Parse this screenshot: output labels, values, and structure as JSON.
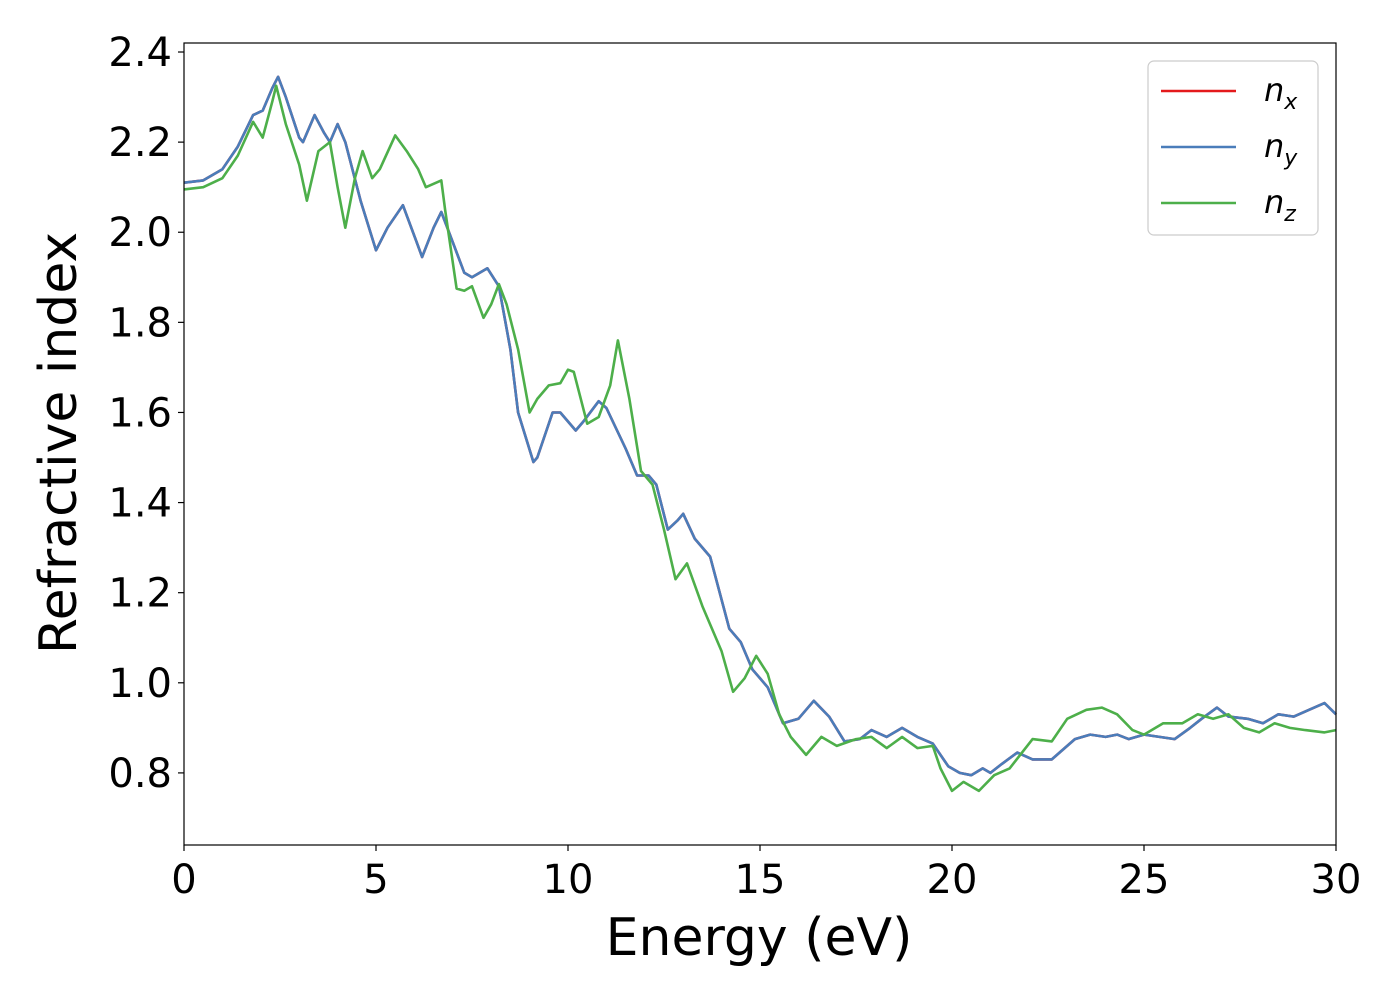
{
  "chart_data": {
    "type": "line",
    "title": "",
    "xlabel": "Energy (eV)",
    "ylabel": "Refractive index",
    "xlim": [
      0,
      30
    ],
    "ylim": [
      0.64,
      2.42
    ],
    "xticks": [
      0,
      5,
      10,
      15,
      20,
      25,
      30
    ],
    "yticks": [
      0.8,
      1.0,
      1.2,
      1.4,
      1.6,
      1.8,
      2.0,
      2.2,
      2.4
    ],
    "xtick_labels": [
      "0",
      "5",
      "10",
      "15",
      "20",
      "25",
      "30"
    ],
    "ytick_labels": [
      "0.8",
      "1.0",
      "1.2",
      "1.4",
      "1.6",
      "1.8",
      "2.0",
      "2.2",
      "2.4"
    ],
    "grid": false,
    "legend_position": "top-right",
    "series": [
      {
        "name": "n_x",
        "legend_base": "n",
        "legend_sub": "x",
        "color": "#e41a1c",
        "points": [
          [
            0,
            2.11
          ],
          [
            0.5,
            2.115
          ],
          [
            1,
            2.14
          ],
          [
            1.4,
            2.19
          ],
          [
            1.8,
            2.26
          ],
          [
            2.05,
            2.27
          ],
          [
            2.3,
            2.32
          ],
          [
            2.45,
            2.345
          ],
          [
            2.65,
            2.3
          ],
          [
            3.0,
            2.21
          ],
          [
            3.1,
            2.2
          ],
          [
            3.4,
            2.26
          ],
          [
            3.65,
            2.22
          ],
          [
            3.8,
            2.2
          ],
          [
            4.0,
            2.24
          ],
          [
            4.2,
            2.2
          ],
          [
            4.6,
            2.07
          ],
          [
            5.0,
            1.96
          ],
          [
            5.3,
            2.01
          ],
          [
            5.7,
            2.06
          ],
          [
            6.05,
            1.98
          ],
          [
            6.2,
            1.945
          ],
          [
            6.5,
            2.01
          ],
          [
            6.7,
            2.045
          ],
          [
            6.9,
            2.0
          ],
          [
            7.3,
            1.91
          ],
          [
            7.5,
            1.9
          ],
          [
            7.9,
            1.92
          ],
          [
            8.2,
            1.88
          ],
          [
            8.5,
            1.74
          ],
          [
            8.7,
            1.6
          ],
          [
            9.1,
            1.49
          ],
          [
            9.2,
            1.5
          ],
          [
            9.6,
            1.6
          ],
          [
            9.8,
            1.6
          ],
          [
            10.2,
            1.56
          ],
          [
            10.4,
            1.58
          ],
          [
            10.8,
            1.625
          ],
          [
            11.0,
            1.61
          ],
          [
            11.5,
            1.52
          ],
          [
            11.8,
            1.46
          ],
          [
            12.1,
            1.46
          ],
          [
            12.3,
            1.44
          ],
          [
            12.6,
            1.34
          ],
          [
            12.85,
            1.36
          ],
          [
            13.0,
            1.375
          ],
          [
            13.3,
            1.32
          ],
          [
            13.7,
            1.28
          ],
          [
            14.2,
            1.12
          ],
          [
            14.5,
            1.09
          ],
          [
            14.8,
            1.03
          ],
          [
            15.2,
            0.99
          ],
          [
            15.6,
            0.91
          ],
          [
            16.0,
            0.92
          ],
          [
            16.4,
            0.96
          ],
          [
            16.8,
            0.925
          ],
          [
            17.2,
            0.87
          ],
          [
            17.6,
            0.875
          ],
          [
            17.9,
            0.895
          ],
          [
            18.3,
            0.88
          ],
          [
            18.7,
            0.9
          ],
          [
            19.1,
            0.88
          ],
          [
            19.5,
            0.865
          ],
          [
            19.9,
            0.815
          ],
          [
            20.2,
            0.8
          ],
          [
            20.5,
            0.795
          ],
          [
            20.8,
            0.81
          ],
          [
            21.0,
            0.8
          ],
          [
            21.3,
            0.82
          ],
          [
            21.7,
            0.845
          ],
          [
            22.1,
            0.83
          ],
          [
            22.6,
            0.83
          ],
          [
            23.2,
            0.875
          ],
          [
            23.6,
            0.885
          ],
          [
            24.0,
            0.88
          ],
          [
            24.3,
            0.885
          ],
          [
            24.6,
            0.875
          ],
          [
            25.0,
            0.885
          ],
          [
            25.4,
            0.88
          ],
          [
            25.8,
            0.875
          ],
          [
            26.2,
            0.9
          ],
          [
            26.5,
            0.92
          ],
          [
            26.9,
            0.945
          ],
          [
            27.2,
            0.925
          ],
          [
            27.7,
            0.92
          ],
          [
            28.1,
            0.91
          ],
          [
            28.5,
            0.93
          ],
          [
            28.9,
            0.925
          ],
          [
            29.3,
            0.94
          ],
          [
            29.7,
            0.955
          ],
          [
            30,
            0.93
          ]
        ]
      },
      {
        "name": "n_y",
        "legend_base": "n",
        "legend_sub": "y",
        "color": "#4a7dba",
        "points": [
          [
            0,
            2.11
          ],
          [
            0.5,
            2.115
          ],
          [
            1,
            2.14
          ],
          [
            1.4,
            2.19
          ],
          [
            1.8,
            2.26
          ],
          [
            2.05,
            2.27
          ],
          [
            2.3,
            2.32
          ],
          [
            2.45,
            2.345
          ],
          [
            2.65,
            2.3
          ],
          [
            3.0,
            2.21
          ],
          [
            3.1,
            2.2
          ],
          [
            3.4,
            2.26
          ],
          [
            3.65,
            2.22
          ],
          [
            3.8,
            2.2
          ],
          [
            4.0,
            2.24
          ],
          [
            4.2,
            2.2
          ],
          [
            4.6,
            2.07
          ],
          [
            5.0,
            1.96
          ],
          [
            5.3,
            2.01
          ],
          [
            5.7,
            2.06
          ],
          [
            6.05,
            1.98
          ],
          [
            6.2,
            1.945
          ],
          [
            6.5,
            2.01
          ],
          [
            6.7,
            2.045
          ],
          [
            6.9,
            2.0
          ],
          [
            7.3,
            1.91
          ],
          [
            7.5,
            1.9
          ],
          [
            7.9,
            1.92
          ],
          [
            8.2,
            1.88
          ],
          [
            8.5,
            1.74
          ],
          [
            8.7,
            1.6
          ],
          [
            9.1,
            1.49
          ],
          [
            9.2,
            1.5
          ],
          [
            9.6,
            1.6
          ],
          [
            9.8,
            1.6
          ],
          [
            10.2,
            1.56
          ],
          [
            10.4,
            1.58
          ],
          [
            10.8,
            1.625
          ],
          [
            11.0,
            1.61
          ],
          [
            11.5,
            1.52
          ],
          [
            11.8,
            1.46
          ],
          [
            12.1,
            1.46
          ],
          [
            12.3,
            1.44
          ],
          [
            12.6,
            1.34
          ],
          [
            12.85,
            1.36
          ],
          [
            13.0,
            1.375
          ],
          [
            13.3,
            1.32
          ],
          [
            13.7,
            1.28
          ],
          [
            14.2,
            1.12
          ],
          [
            14.5,
            1.09
          ],
          [
            14.8,
            1.03
          ],
          [
            15.2,
            0.99
          ],
          [
            15.6,
            0.91
          ],
          [
            16.0,
            0.92
          ],
          [
            16.4,
            0.96
          ],
          [
            16.8,
            0.925
          ],
          [
            17.2,
            0.87
          ],
          [
            17.6,
            0.875
          ],
          [
            17.9,
            0.895
          ],
          [
            18.3,
            0.88
          ],
          [
            18.7,
            0.9
          ],
          [
            19.1,
            0.88
          ],
          [
            19.5,
            0.865
          ],
          [
            19.9,
            0.815
          ],
          [
            20.2,
            0.8
          ],
          [
            20.5,
            0.795
          ],
          [
            20.8,
            0.81
          ],
          [
            21.0,
            0.8
          ],
          [
            21.3,
            0.82
          ],
          [
            21.7,
            0.845
          ],
          [
            22.1,
            0.83
          ],
          [
            22.6,
            0.83
          ],
          [
            23.2,
            0.875
          ],
          [
            23.6,
            0.885
          ],
          [
            24.0,
            0.88
          ],
          [
            24.3,
            0.885
          ],
          [
            24.6,
            0.875
          ],
          [
            25.0,
            0.885
          ],
          [
            25.4,
            0.88
          ],
          [
            25.8,
            0.875
          ],
          [
            26.2,
            0.9
          ],
          [
            26.5,
            0.92
          ],
          [
            26.9,
            0.945
          ],
          [
            27.2,
            0.925
          ],
          [
            27.7,
            0.92
          ],
          [
            28.1,
            0.91
          ],
          [
            28.5,
            0.93
          ],
          [
            28.9,
            0.925
          ],
          [
            29.3,
            0.94
          ],
          [
            29.7,
            0.955
          ],
          [
            30,
            0.93
          ]
        ]
      },
      {
        "name": "n_z",
        "legend_base": "n",
        "legend_sub": "z",
        "color": "#4daf4a",
        "points": [
          [
            0,
            2.095
          ],
          [
            0.5,
            2.1
          ],
          [
            1,
            2.12
          ],
          [
            1.4,
            2.17
          ],
          [
            1.8,
            2.245
          ],
          [
            2.05,
            2.21
          ],
          [
            2.3,
            2.29
          ],
          [
            2.4,
            2.325
          ],
          [
            2.65,
            2.24
          ],
          [
            3.0,
            2.15
          ],
          [
            3.2,
            2.07
          ],
          [
            3.5,
            2.18
          ],
          [
            3.8,
            2.2
          ],
          [
            4.0,
            2.1
          ],
          [
            4.2,
            2.01
          ],
          [
            4.45,
            2.12
          ],
          [
            4.65,
            2.18
          ],
          [
            4.9,
            2.12
          ],
          [
            5.1,
            2.14
          ],
          [
            5.5,
            2.215
          ],
          [
            5.8,
            2.18
          ],
          [
            6.1,
            2.14
          ],
          [
            6.3,
            2.1
          ],
          [
            6.7,
            2.115
          ],
          [
            6.8,
            2.05
          ],
          [
            7.1,
            1.875
          ],
          [
            7.3,
            1.87
          ],
          [
            7.5,
            1.88
          ],
          [
            7.8,
            1.81
          ],
          [
            8.0,
            1.84
          ],
          [
            8.2,
            1.885
          ],
          [
            8.4,
            1.84
          ],
          [
            8.7,
            1.74
          ],
          [
            9.0,
            1.6
          ],
          [
            9.2,
            1.63
          ],
          [
            9.5,
            1.66
          ],
          [
            9.8,
            1.665
          ],
          [
            10.0,
            1.695
          ],
          [
            10.15,
            1.69
          ],
          [
            10.5,
            1.575
          ],
          [
            10.8,
            1.59
          ],
          [
            11.1,
            1.66
          ],
          [
            11.3,
            1.76
          ],
          [
            11.6,
            1.63
          ],
          [
            11.9,
            1.47
          ],
          [
            12.2,
            1.44
          ],
          [
            12.5,
            1.34
          ],
          [
            12.8,
            1.23
          ],
          [
            13.1,
            1.265
          ],
          [
            13.5,
            1.17
          ],
          [
            14.0,
            1.07
          ],
          [
            14.3,
            0.98
          ],
          [
            14.6,
            1.01
          ],
          [
            14.9,
            1.06
          ],
          [
            15.2,
            1.02
          ],
          [
            15.5,
            0.93
          ],
          [
            15.8,
            0.88
          ],
          [
            16.2,
            0.84
          ],
          [
            16.6,
            0.88
          ],
          [
            17.0,
            0.86
          ],
          [
            17.5,
            0.875
          ],
          [
            17.9,
            0.88
          ],
          [
            18.3,
            0.855
          ],
          [
            18.7,
            0.88
          ],
          [
            19.1,
            0.855
          ],
          [
            19.5,
            0.86
          ],
          [
            19.7,
            0.81
          ],
          [
            20.0,
            0.76
          ],
          [
            20.3,
            0.78
          ],
          [
            20.7,
            0.76
          ],
          [
            21.1,
            0.795
          ],
          [
            21.5,
            0.81
          ],
          [
            22.1,
            0.875
          ],
          [
            22.6,
            0.87
          ],
          [
            23.0,
            0.92
          ],
          [
            23.5,
            0.94
          ],
          [
            23.9,
            0.945
          ],
          [
            24.3,
            0.93
          ],
          [
            24.7,
            0.895
          ],
          [
            25.0,
            0.885
          ],
          [
            25.5,
            0.91
          ],
          [
            26.0,
            0.91
          ],
          [
            26.4,
            0.93
          ],
          [
            26.8,
            0.92
          ],
          [
            27.2,
            0.93
          ],
          [
            27.6,
            0.9
          ],
          [
            28.0,
            0.89
          ],
          [
            28.4,
            0.91
          ],
          [
            28.8,
            0.9
          ],
          [
            29.2,
            0.895
          ],
          [
            29.7,
            0.89
          ],
          [
            30,
            0.895
          ]
        ]
      }
    ]
  }
}
